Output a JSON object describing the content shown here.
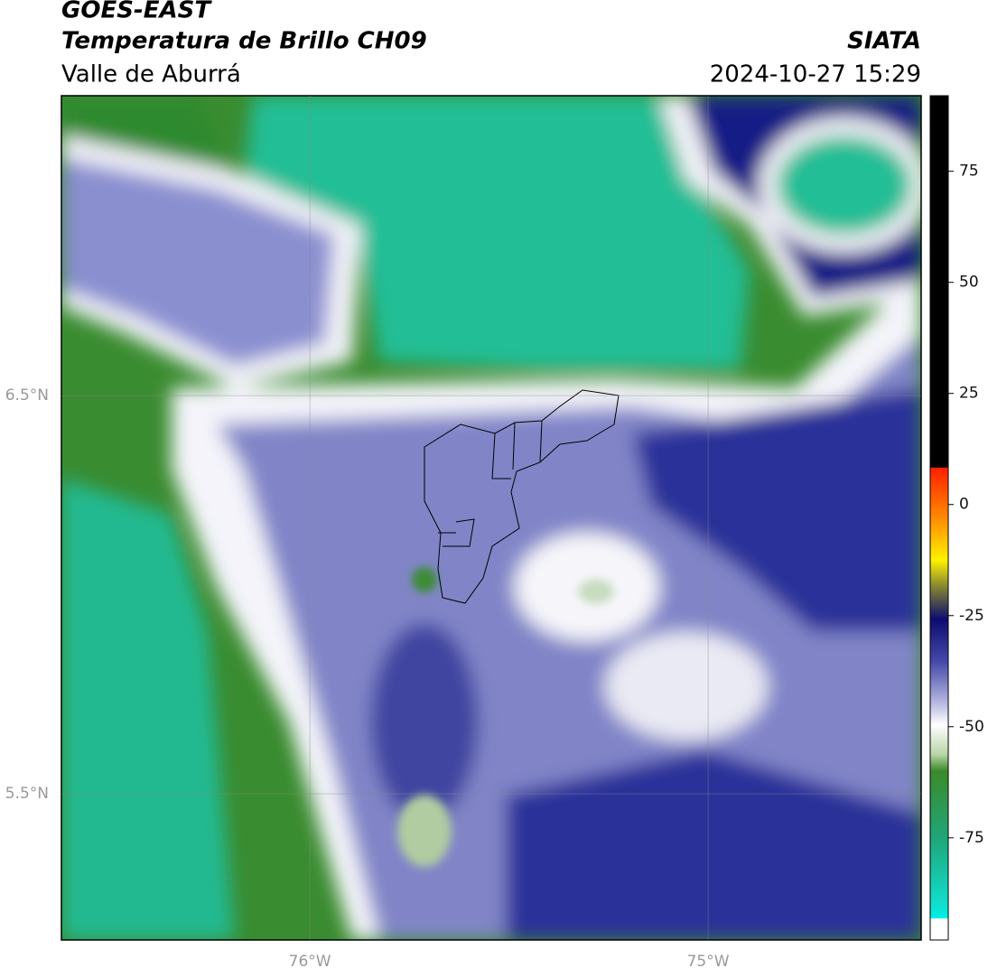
{
  "chart_data": {
    "type": "map",
    "title": "GOES-EAST",
    "subtitle": "Temperatura de Brillo CH09",
    "region": "Valle de Aburrá",
    "source": "SIATA",
    "timestamp": "2024-10-27 15:29",
    "xlim": [
      -76.624,
      -74.465
    ],
    "ylim": [
      5.133,
      7.253
    ],
    "xticks": [
      {
        "value": -76,
        "label": "76°W"
      },
      {
        "value": -75,
        "label": "75°W"
      }
    ],
    "yticks": [
      {
        "value": 6.5,
        "label": "6.5°N"
      },
      {
        "value": 5.5,
        "label": "5.5°N"
      }
    ],
    "grid": true,
    "colorbar": {
      "lim": [
        -98,
        92
      ],
      "ticks": [
        75,
        50,
        25,
        0,
        -25,
        -50,
        -75
      ]
    }
  }
}
